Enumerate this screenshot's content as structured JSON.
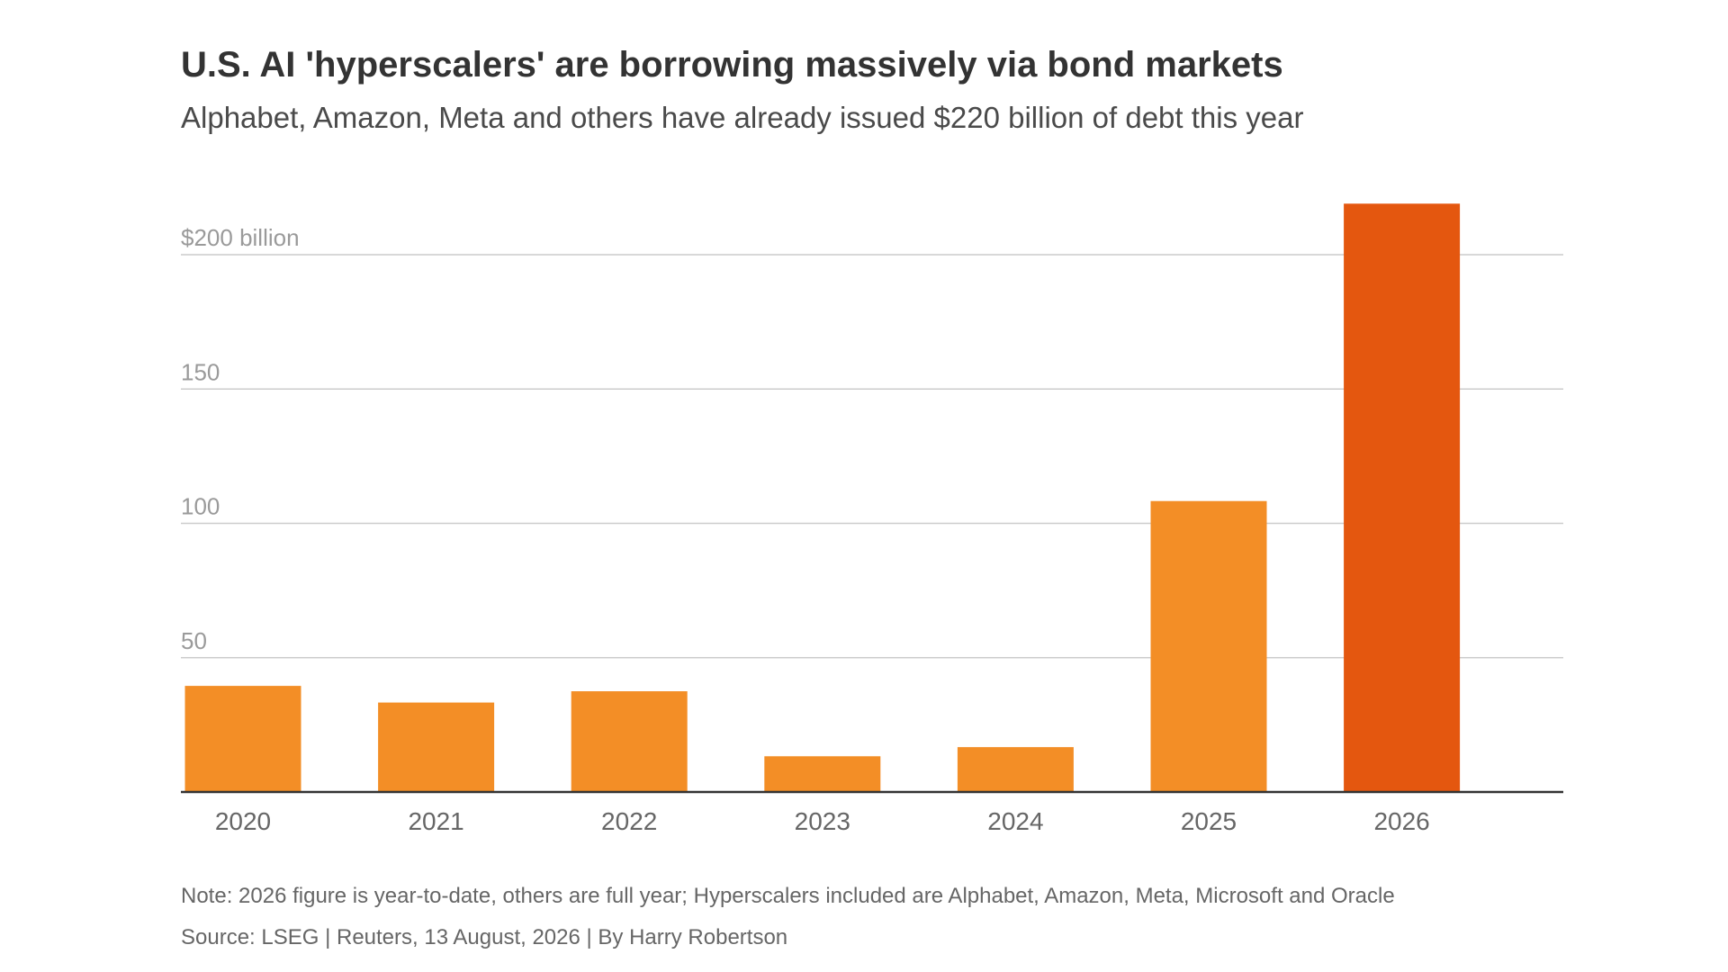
{
  "chart_data": {
    "type": "bar",
    "title": "U.S. AI 'hyperscalers' are borrowing massively via bond markets",
    "subtitle": "Alphabet, Amazon, Meta and others have already issued $220 billion of debt this year",
    "categories": [
      "2020",
      "2021",
      "2022",
      "2023",
      "2024",
      "2025",
      "2026"
    ],
    "values": [
      39.5,
      33.3,
      37.5,
      13.3,
      16.7,
      108.3,
      219
    ],
    "bar_colors": [
      "#F38E26",
      "#F38E26",
      "#F38E26",
      "#F38E26",
      "#F38E26",
      "#F38E26",
      "#E4570F"
    ],
    "ylim": [
      0,
      219
    ],
    "yticks": [
      50,
      100,
      150,
      200
    ],
    "ytick_labels": [
      "50",
      "100",
      "150",
      "$200 billion"
    ],
    "grid": true,
    "gridline_color": "#cccccc",
    "axis_color": "#333333",
    "xlabel": "",
    "ylabel": ""
  },
  "footer": {
    "note": "Note: 2026 figure is year-to-date, others are full year; Hyperscalers included are Alphabet, Amazon, Meta, Microsoft and Oracle",
    "source": "Source: LSEG | Reuters, 13 August, 2026 | By Harry Robertson"
  }
}
